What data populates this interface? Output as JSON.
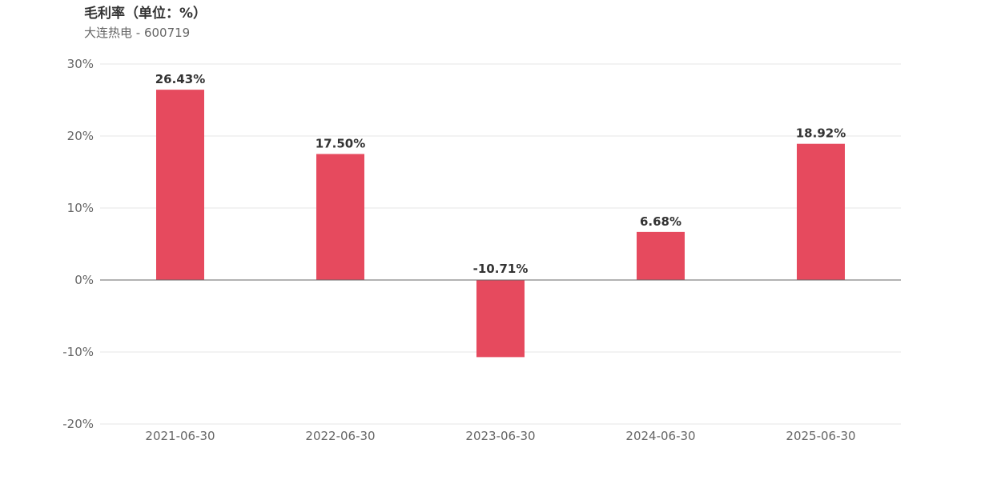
{
  "chart_data": {
    "type": "bar",
    "title": "毛利率（单位：%）",
    "subtitle": "大连热电 - 600719",
    "categories": [
      "2021-06-30",
      "2022-06-30",
      "2023-06-30",
      "2024-06-30",
      "2025-06-30"
    ],
    "values": [
      26.43,
      17.5,
      -10.71,
      6.68,
      18.92
    ],
    "value_labels": [
      "26.43%",
      "17.50%",
      "-10.71%",
      "6.68%",
      "18.92%"
    ],
    "ylim": [
      -20,
      30
    ],
    "yticks": [
      -20,
      -10,
      0,
      10,
      20,
      30
    ],
    "ytick_labels": [
      "-20%",
      "-10%",
      "0%",
      "10%",
      "20%",
      "30%"
    ],
    "grid": true,
    "colors": {
      "bar": "#e64a5e",
      "grid": "#e6e6e6",
      "zero_line": "#666666"
    }
  }
}
